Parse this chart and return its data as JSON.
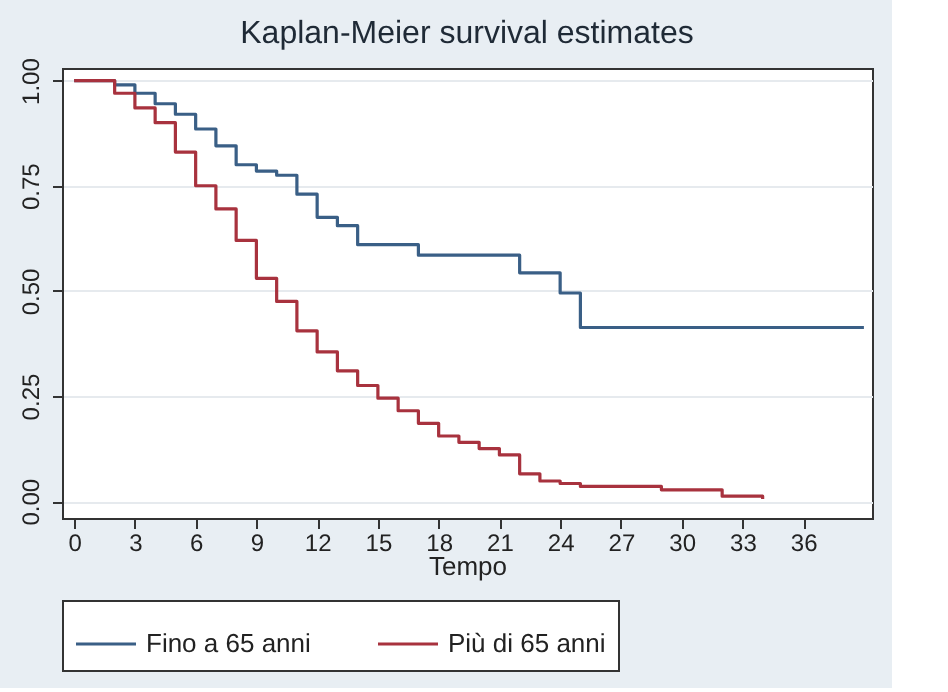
{
  "chart_data": {
    "type": "step",
    "title": "Kaplan-Meier survival estimates",
    "xlabel": "Tempo",
    "xlim": [
      -0.6,
      39.4
    ],
    "xticks": [
      0,
      3,
      6,
      9,
      12,
      15,
      18,
      21,
      24,
      27,
      30,
      33,
      36
    ],
    "ylim": [
      -0.04,
      1.03
    ],
    "yticks": [
      {
        "value": 0,
        "label": "0.00"
      },
      {
        "value": 0.25,
        "label": "0.25"
      },
      {
        "value": 0.5,
        "label": "0.50"
      },
      {
        "value": 0.75,
        "label": "0.75"
      },
      {
        "value": 1,
        "label": "1.00"
      }
    ],
    "grid": "y",
    "legend": "bottom",
    "line_style": "solid",
    "marker": "none",
    "series": [
      {
        "name": "Fino a 65 anni",
        "color": "#3a5f86",
        "x": [
          0,
          2,
          3,
          4,
          5,
          6,
          7,
          8,
          9,
          10,
          11,
          12,
          13,
          14,
          17,
          22,
          24,
          25,
          39
        ],
        "values": [
          1.0,
          0.99,
          0.97,
          0.945,
          0.92,
          0.885,
          0.845,
          0.8,
          0.785,
          0.775,
          0.73,
          0.675,
          0.655,
          0.61,
          0.585,
          0.543,
          0.495,
          0.413,
          0.413
        ]
      },
      {
        "name": "Più di 65 anni",
        "color": "#a8323e",
        "x": [
          0,
          2,
          3,
          4,
          5,
          6,
          7,
          8,
          9,
          10,
          11,
          12,
          13,
          14,
          15,
          16,
          17,
          18,
          19,
          20,
          21,
          22,
          23,
          24,
          25,
          29,
          32,
          34
        ],
        "values": [
          1.0,
          0.97,
          0.935,
          0.9,
          0.83,
          0.75,
          0.695,
          0.62,
          0.53,
          0.475,
          0.405,
          0.355,
          0.31,
          0.275,
          0.245,
          0.215,
          0.185,
          0.155,
          0.14,
          0.125,
          0.11,
          0.065,
          0.048,
          0.042,
          0.035,
          0.027,
          0.012,
          0.005
        ]
      }
    ]
  }
}
